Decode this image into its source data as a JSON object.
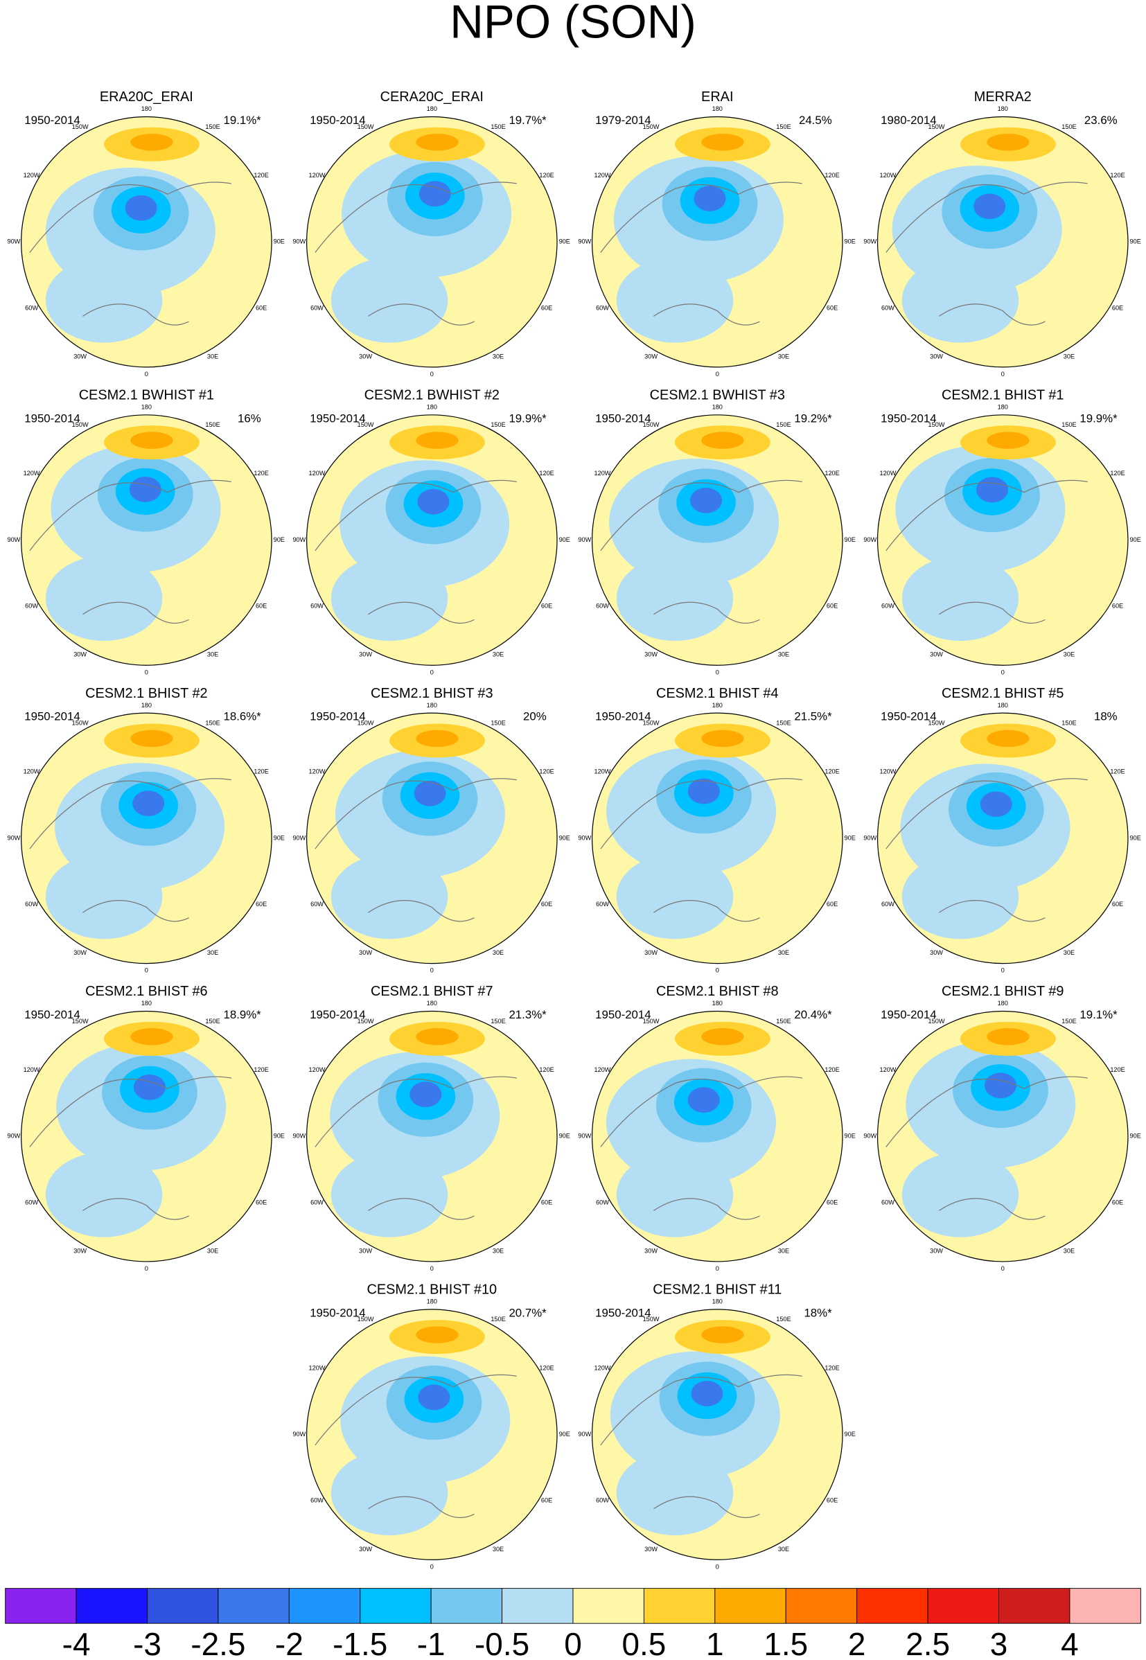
{
  "title": "NPO (SON)",
  "panels": [
    {
      "title": "ERA20C_ERAI",
      "period": "1950-2014",
      "variance": "19.1%*"
    },
    {
      "title": "CERA20C_ERAI",
      "period": "1950-2014",
      "variance": "19.7%*"
    },
    {
      "title": "ERAI",
      "period": "1979-2014",
      "variance": "24.5%"
    },
    {
      "title": "MERRA2",
      "period": "1980-2014",
      "variance": "23.6%"
    },
    {
      "title": "CESM2.1 BWHIST #1",
      "period": "1950-2014",
      "variance": "16%"
    },
    {
      "title": "CESM2.1 BWHIST #2",
      "period": "1950-2014",
      "variance": "19.9%*"
    },
    {
      "title": "CESM2.1 BWHIST #3",
      "period": "1950-2014",
      "variance": "19.2%*"
    },
    {
      "title": "CESM2.1 BHIST #1",
      "period": "1950-2014",
      "variance": "19.9%*"
    },
    {
      "title": "CESM2.1 BHIST #2",
      "period": "1950-2014",
      "variance": "18.6%*"
    },
    {
      "title": "CESM2.1 BHIST #3",
      "period": "1950-2014",
      "variance": "20%"
    },
    {
      "title": "CESM2.1 BHIST #4",
      "period": "1950-2014",
      "variance": "21.5%*"
    },
    {
      "title": "CESM2.1 BHIST #5",
      "period": "1950-2014",
      "variance": "18%"
    },
    {
      "title": "CESM2.1 BHIST #6",
      "period": "1950-2014",
      "variance": "18.9%*"
    },
    {
      "title": "CESM2.1 BHIST #7",
      "period": "1950-2014",
      "variance": "21.3%*"
    },
    {
      "title": "CESM2.1 BHIST #8",
      "period": "1950-2014",
      "variance": "20.4%*"
    },
    {
      "title": "CESM2.1 BHIST #9",
      "period": "1950-2014",
      "variance": "19.1%*"
    },
    {
      "title": "CESM2.1 BHIST #10",
      "period": "1950-2014",
      "variance": "20.7%*"
    },
    {
      "title": "CESM2.1 BHIST #11",
      "period": "1950-2014",
      "variance": "18%*"
    }
  ],
  "longitude_labels": [
    "180",
    "150E",
    "120E",
    "90E",
    "60E",
    "30E",
    "0",
    "30W",
    "60W",
    "90W",
    "120W",
    "150W"
  ],
  "colorbar": {
    "levels": [
      -4,
      -3,
      -2.5,
      -2,
      -1.5,
      -1,
      -0.5,
      0,
      0.5,
      1,
      1.5,
      2,
      2.5,
      3,
      4
    ],
    "colors": [
      "#8a22f0",
      "#1a14ff",
      "#2f52e0",
      "#3a78ee",
      "#1e94ff",
      "#00c0ff",
      "#74c8f0",
      "#b4def4",
      "#fff7a8",
      "#ffd232",
      "#ffaa00",
      "#ff7800",
      "#ff3000",
      "#f01a14",
      "#d01e1e",
      "#ffb4b4"
    ]
  }
}
